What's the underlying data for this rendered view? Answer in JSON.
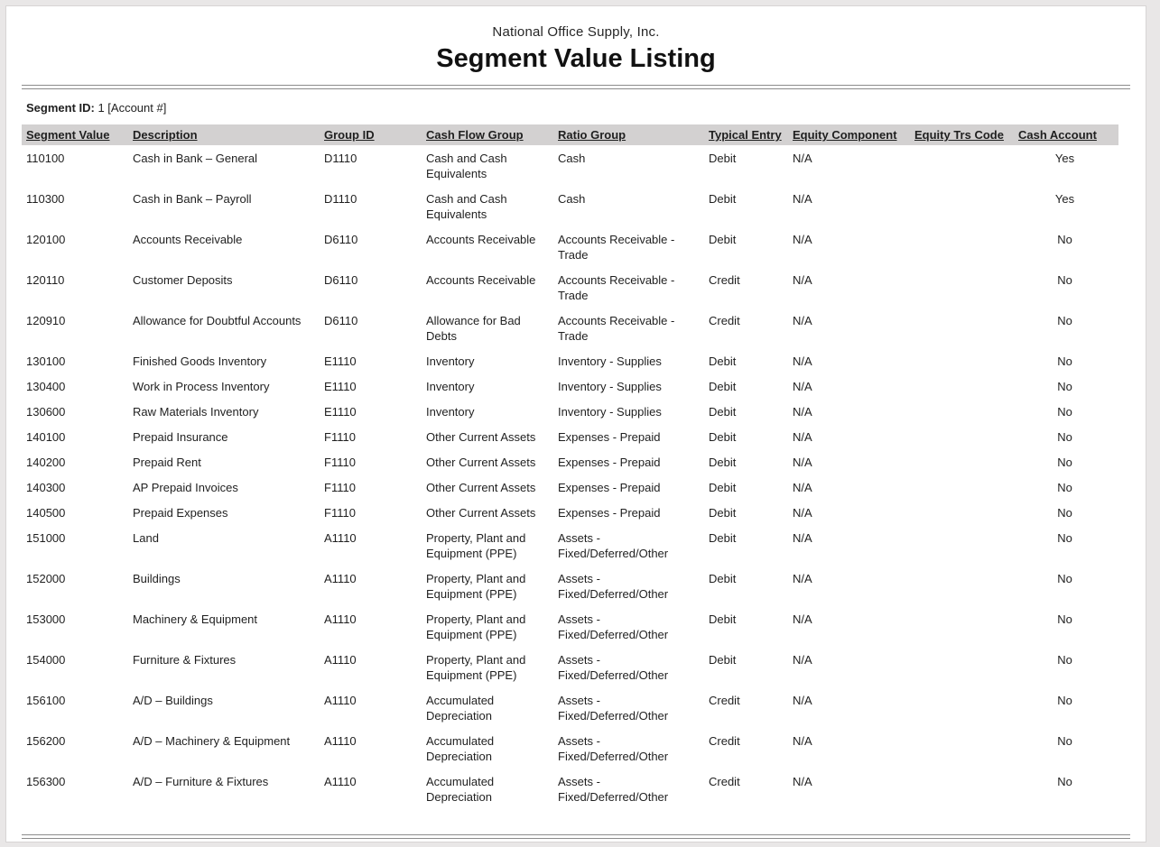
{
  "report": {
    "company": "National Office Supply, Inc.",
    "title": "Segment Value Listing",
    "segment_label": "Segment ID:",
    "segment_value": " 1 [Account #]"
  },
  "colors": {
    "header_band": "#d3d1d1",
    "rule_gray": "#8c8c8c",
    "page_background": "#ffffff",
    "outer_background": "#e9e7e7"
  },
  "table": {
    "columns": [
      "Segment Value",
      "Description",
      "Group ID",
      "Cash Flow Group",
      "Ratio Group",
      "Typical Entry",
      "Equity Component",
      "Equity Trs Code",
      "Cash Account"
    ],
    "rows": [
      [
        "110100",
        "Cash in Bank – General",
        "D1110",
        "Cash and Cash Equivalents",
        "Cash",
        "Debit",
        "N/A",
        "",
        "Yes"
      ],
      [
        "110300",
        "Cash in Bank – Payroll",
        "D1110",
        "Cash and Cash Equivalents",
        "Cash",
        "Debit",
        "N/A",
        "",
        "Yes"
      ],
      [
        "120100",
        "Accounts Receivable",
        "D6110",
        "Accounts Receivable",
        "Accounts Receivable - Trade",
        "Debit",
        "N/A",
        "",
        "No"
      ],
      [
        "120110",
        "Customer Deposits",
        "D6110",
        "Accounts Receivable",
        "Accounts Receivable - Trade",
        "Credit",
        "N/A",
        "",
        "No"
      ],
      [
        "120910",
        "Allowance for Doubtful Accounts",
        "D6110",
        "Allowance for Bad Debts",
        "Accounts Receivable - Trade",
        "Credit",
        "N/A",
        "",
        "No"
      ],
      [
        "130100",
        "Finished Goods Inventory",
        "E1110",
        "Inventory",
        "Inventory - Supplies",
        "Debit",
        "N/A",
        "",
        "No"
      ],
      [
        "130400",
        "Work in Process Inventory",
        "E1110",
        "Inventory",
        "Inventory - Supplies",
        "Debit",
        "N/A",
        "",
        "No"
      ],
      [
        "130600",
        "Raw Materials Inventory",
        "E1110",
        "Inventory",
        "Inventory - Supplies",
        "Debit",
        "N/A",
        "",
        "No"
      ],
      [
        "140100",
        "Prepaid Insurance",
        "F1110",
        "Other Current Assets",
        "Expenses - Prepaid",
        "Debit",
        "N/A",
        "",
        "No"
      ],
      [
        "140200",
        "Prepaid Rent",
        "F1110",
        "Other Current Assets",
        "Expenses - Prepaid",
        "Debit",
        "N/A",
        "",
        "No"
      ],
      [
        "140300",
        "AP Prepaid Invoices",
        "F1110",
        "Other Current Assets",
        "Expenses - Prepaid",
        "Debit",
        "N/A",
        "",
        "No"
      ],
      [
        "140500",
        "Prepaid Expenses",
        "F1110",
        "Other Current Assets",
        "Expenses - Prepaid",
        "Debit",
        "N/A",
        "",
        "No"
      ],
      [
        "151000",
        "Land",
        "A1110",
        "Property, Plant and Equipment (PPE)",
        "Assets - Fixed/Deferred/Other",
        "Debit",
        "N/A",
        "",
        "No"
      ],
      [
        "152000",
        "Buildings",
        "A1110",
        "Property, Plant and Equipment (PPE)",
        "Assets - Fixed/Deferred/Other",
        "Debit",
        "N/A",
        "",
        "No"
      ],
      [
        "153000",
        "Machinery & Equipment",
        "A1110",
        "Property, Plant and Equipment (PPE)",
        "Assets - Fixed/Deferred/Other",
        "Debit",
        "N/A",
        "",
        "No"
      ],
      [
        "154000",
        "Furniture & Fixtures",
        "A1110",
        "Property, Plant and Equipment (PPE)",
        "Assets - Fixed/Deferred/Other",
        "Debit",
        "N/A",
        "",
        "No"
      ],
      [
        "156100",
        "A/D – Buildings",
        "A1110",
        "Accumulated Depreciation",
        "Assets - Fixed/Deferred/Other",
        "Credit",
        "N/A",
        "",
        "No"
      ],
      [
        "156200",
        "A/D – Machinery & Equipment",
        "A1110",
        "Accumulated Depreciation",
        "Assets - Fixed/Deferred/Other",
        "Credit",
        "N/A",
        "",
        "No"
      ],
      [
        "156300",
        "A/D – Furniture & Fixtures",
        "A1110",
        "Accumulated Depreciation",
        "Assets - Fixed/Deferred/Other",
        "Credit",
        "N/A",
        "",
        "No"
      ]
    ]
  }
}
